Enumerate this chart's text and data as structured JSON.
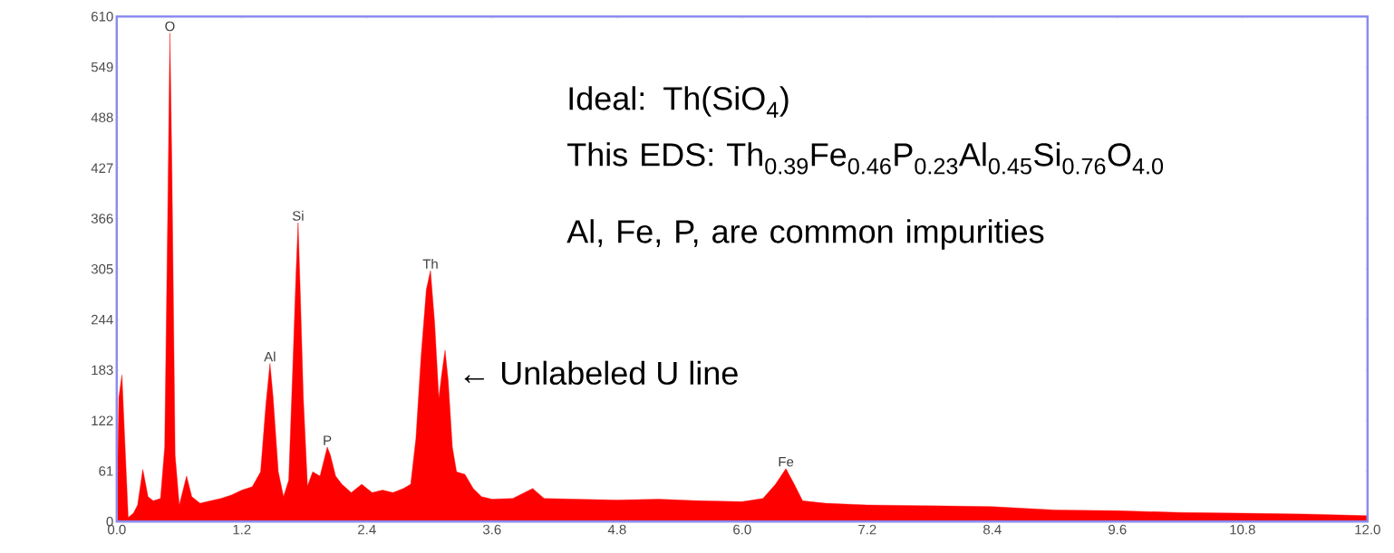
{
  "chart_data": {
    "type": "area",
    "color": "#ff0000",
    "x": [
      0.0,
      0.02,
      0.05,
      0.08,
      0.11,
      0.16,
      0.2,
      0.25,
      0.3,
      0.35,
      0.42,
      0.46,
      0.49,
      0.51,
      0.53,
      0.56,
      0.6,
      0.67,
      0.72,
      0.8,
      0.9,
      1.0,
      1.1,
      1.2,
      1.3,
      1.38,
      1.43,
      1.47,
      1.5,
      1.55,
      1.6,
      1.65,
      1.69,
      1.72,
      1.74,
      1.76,
      1.79,
      1.83,
      1.88,
      1.95,
      2.0,
      2.02,
      2.05,
      2.1,
      2.16,
      2.25,
      2.35,
      2.45,
      2.55,
      2.65,
      2.75,
      2.82,
      2.87,
      2.92,
      2.97,
      3.01,
      3.05,
      3.09,
      3.12,
      3.15,
      3.18,
      3.22,
      3.26,
      3.34,
      3.42,
      3.5,
      3.6,
      3.8,
      3.99,
      4.1,
      4.4,
      4.8,
      5.2,
      5.6,
      6.0,
      6.2,
      6.32,
      6.42,
      6.5,
      6.58,
      6.8,
      7.2,
      7.8,
      8.4,
      9.0,
      9.6,
      10.2,
      10.8,
      11.4,
      12.0
    ],
    "values": [
      0,
      150,
      177,
      90,
      5,
      10,
      20,
      63,
      30,
      25,
      28,
      90,
      380,
      590,
      420,
      80,
      20,
      55,
      30,
      22,
      25,
      28,
      32,
      38,
      42,
      60,
      140,
      191,
      150,
      60,
      30,
      50,
      190,
      300,
      361,
      280,
      150,
      43,
      60,
      55,
      80,
      90,
      80,
      55,
      45,
      35,
      45,
      35,
      38,
      35,
      40,
      45,
      100,
      200,
      280,
      303,
      240,
      149,
      180,
      207,
      170,
      90,
      60,
      57,
      40,
      30,
      27,
      28,
      40,
      28,
      27,
      26,
      27,
      25,
      24,
      28,
      45,
      64,
      45,
      25,
      22,
      20,
      19,
      18,
      14,
      13,
      11,
      10,
      9,
      7
    ],
    "xlim": [
      0,
      12
    ],
    "ylim": [
      0,
      610
    ],
    "xticks": [
      {
        "value": 0,
        "label": "0.0"
      },
      1.2,
      2.4,
      3.6,
      4.8,
      {
        "value": 6,
        "label": "6.0"
      },
      7.2,
      8.4,
      9.6,
      10.8,
      {
        "value": 12,
        "label": "12.0"
      }
    ],
    "yticks": [
      0,
      61,
      122,
      183,
      244,
      305,
      366,
      427,
      488,
      549,
      610
    ],
    "annotations": [
      {
        "text": "O",
        "x": 0.51,
        "y": 590
      },
      {
        "text": "Al",
        "x": 1.47,
        "y": 191
      },
      {
        "text": "Si",
        "x": 1.74,
        "y": 361
      },
      {
        "text": "P",
        "x": 2.02,
        "y": 90
      },
      {
        "text": "Th",
        "x": 3.01,
        "y": 303
      },
      {
        "text": "Fe",
        "x": 6.42,
        "y": 64
      },
      {
        "text": "← Unlabeled U line",
        "x": 3.15,
        "y": 207
      },
      "Ideal: Th(SiO$_{4}$)",
      "This EDS: Th$_{0.39}$Fe$_{0.46}$P$_{0.23}$Al$_{0.45}$Si$_{0.76}$O$_{4.0}$",
      "Al, Fe, P, are common impurities"
    ]
  }
}
